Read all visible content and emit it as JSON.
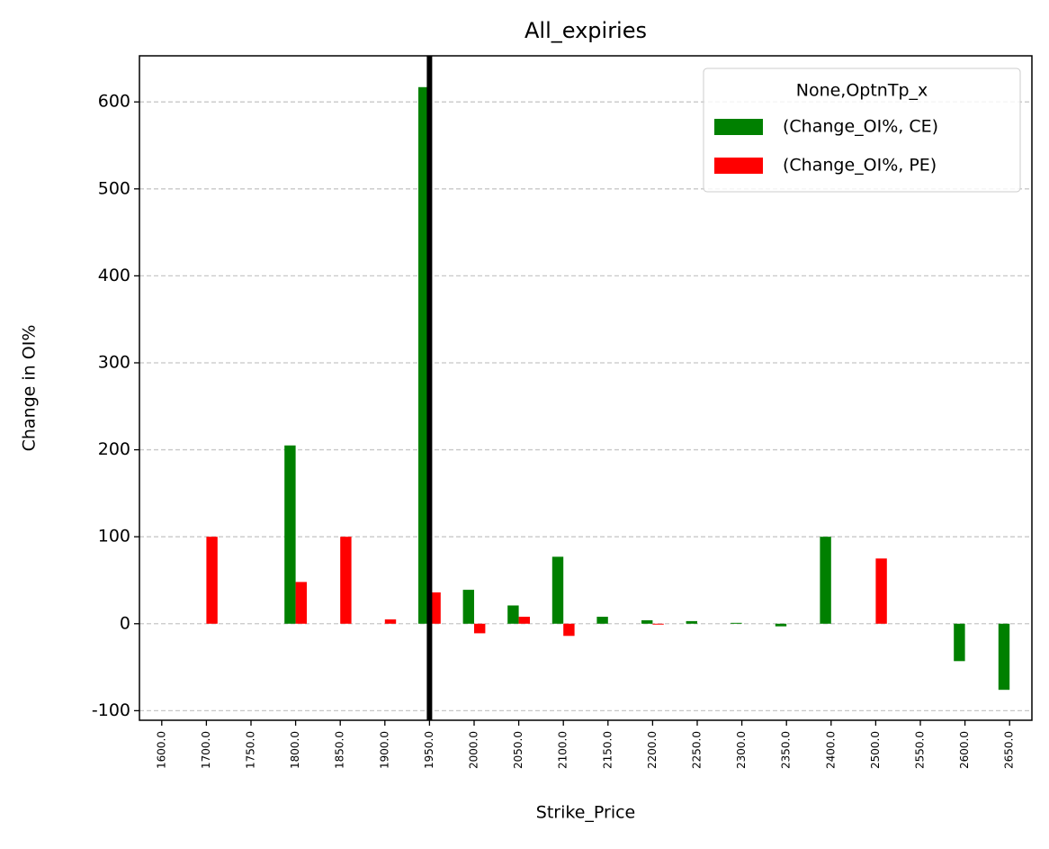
{
  "chart_data": {
    "type": "bar",
    "title": "All_expiries",
    "x_label": "Strike_Price",
    "y_label": "Change in OI%",
    "categories": [
      "1600.0",
      "1700.0",
      "1750.0",
      "1800.0",
      "1850.0",
      "1900.0",
      "1950.0",
      "2000.0",
      "2050.0",
      "2100.0",
      "2150.0",
      "2200.0",
      "2250.0",
      "2300.0",
      "2350.0",
      "2400.0",
      "2500.0",
      "2550.0",
      "2600.0",
      "2650.0"
    ],
    "legend_title": "None,OptnTp_x",
    "legend_position": "upper right",
    "series": [
      {
        "name": "(Change_OI%, CE)",
        "color": "#008000",
        "values": [
          null,
          null,
          null,
          205,
          null,
          null,
          617,
          39,
          21,
          77,
          8,
          4,
          3,
          1,
          -3,
          100,
          null,
          null,
          -43,
          -76
        ]
      },
      {
        "name": "(Change_OI%, PE)",
        "color": "#ff0000",
        "values": [
          null,
          100,
          null,
          48,
          100,
          5,
          36,
          -11,
          8,
          -14,
          null,
          -1,
          null,
          null,
          null,
          null,
          75,
          null,
          null,
          null
        ]
      }
    ],
    "reference_line": {
      "category": "1950.0",
      "color": "#000000"
    },
    "ylim": [
      -111,
      653
    ],
    "yticks": [
      -100,
      0,
      100,
      200,
      300,
      400,
      500,
      600
    ],
    "grid": true
  }
}
